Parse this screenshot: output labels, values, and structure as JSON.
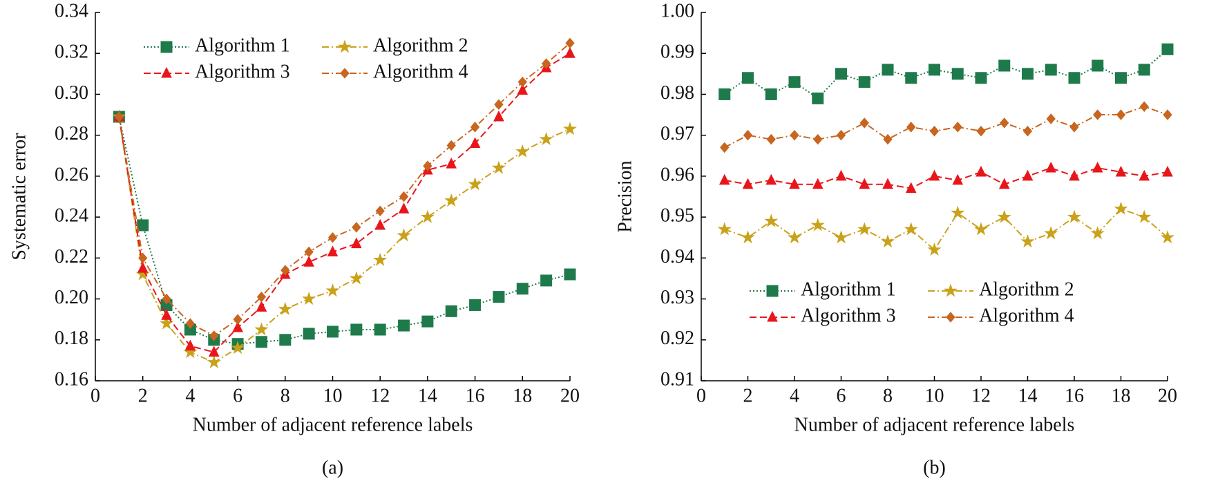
{
  "chart_data": [
    {
      "type": "line",
      "caption": "(a)",
      "xlabel": "Number of adjacent reference labels",
      "ylabel": "Systematic error",
      "x": [
        1,
        2,
        3,
        4,
        5,
        6,
        7,
        8,
        9,
        10,
        11,
        12,
        13,
        14,
        15,
        16,
        17,
        18,
        19,
        20
      ],
      "xlim": [
        0,
        20
      ],
      "xticks": [
        0,
        2,
        4,
        6,
        8,
        10,
        12,
        14,
        16,
        18,
        20
      ],
      "ylim": [
        0.16,
        0.34
      ],
      "yticks": [
        0.16,
        0.18,
        {
          "value": 0.2,
          "label": "0.20"
        },
        0.22,
        0.24,
        0.26,
        0.28,
        {
          "value": 0.3,
          "label": "0.30"
        },
        0.32,
        0.34
      ],
      "legend_loc": "upper left",
      "series": [
        {
          "name": "Algorithm 1",
          "color": "#1e7a4a",
          "marker": "square",
          "dash": "dotted",
          "values": [
            0.289,
            0.236,
            0.197,
            0.185,
            0.18,
            0.178,
            0.179,
            0.18,
            0.183,
            0.184,
            0.185,
            0.185,
            0.187,
            0.189,
            0.194,
            0.197,
            0.201,
            0.205,
            0.209,
            0.212
          ]
        },
        {
          "name": "Algorithm 2",
          "color": "#c9a21a",
          "marker": "star",
          "dash": "dashdot",
          "values": [
            0.289,
            0.212,
            0.188,
            0.174,
            0.169,
            0.176,
            0.185,
            0.195,
            0.2,
            0.204,
            0.21,
            0.219,
            0.231,
            0.24,
            0.248,
            0.256,
            0.264,
            0.272,
            0.278,
            0.283
          ]
        },
        {
          "name": "Algorithm 3",
          "color": "#e8161b",
          "marker": "triangle",
          "dash": "dashed",
          "values": [
            0.289,
            0.215,
            0.192,
            0.177,
            0.174,
            0.186,
            0.196,
            0.212,
            0.218,
            0.223,
            0.227,
            0.236,
            0.244,
            0.263,
            0.266,
            0.276,
            0.289,
            0.302,
            0.313,
            0.32
          ]
        },
        {
          "name": "Algorithm 4",
          "color": "#c8651e",
          "marker": "diamond",
          "dash": "dashdot",
          "values": [
            0.289,
            0.22,
            0.2,
            0.188,
            0.182,
            0.19,
            0.201,
            0.214,
            0.223,
            0.23,
            0.235,
            0.243,
            0.25,
            0.265,
            0.275,
            0.284,
            0.295,
            0.306,
            0.315,
            0.325
          ]
        }
      ]
    },
    {
      "type": "line",
      "caption": "(b)",
      "xlabel": "Number of adjacent reference labels",
      "ylabel": "Precision",
      "x": [
        1,
        2,
        3,
        4,
        5,
        6,
        7,
        8,
        9,
        10,
        11,
        12,
        13,
        14,
        15,
        16,
        17,
        18,
        19,
        20
      ],
      "xlim": [
        0,
        20
      ],
      "xticks": [
        0,
        2,
        4,
        6,
        8,
        10,
        12,
        14,
        16,
        18,
        20
      ],
      "ylim": [
        0.91,
        1.0
      ],
      "yticks": [
        0.91,
        0.92,
        0.93,
        0.94,
        0.95,
        0.96,
        0.97,
        0.98,
        0.99,
        {
          "value": 1.0,
          "label": "1.00"
        }
      ],
      "legend_loc": "lower left",
      "series": [
        {
          "name": "Algorithm 1",
          "color": "#1e7a4a",
          "marker": "square",
          "dash": "dotted",
          "values": [
            0.98,
            0.984,
            0.98,
            0.983,
            0.979,
            0.985,
            0.983,
            0.986,
            0.984,
            0.986,
            0.985,
            0.984,
            0.987,
            0.985,
            0.986,
            0.984,
            0.987,
            0.984,
            0.986,
            0.991
          ]
        },
        {
          "name": "Algorithm 2",
          "color": "#c9a21a",
          "marker": "star",
          "dash": "dashdot",
          "values": [
            0.947,
            0.945,
            0.949,
            0.945,
            0.948,
            0.945,
            0.947,
            0.944,
            0.947,
            0.942,
            0.951,
            0.947,
            0.95,
            0.944,
            0.946,
            0.95,
            0.946,
            0.952,
            0.95,
            0.945
          ]
        },
        {
          "name": "Algorithm 3",
          "color": "#e8161b",
          "marker": "triangle",
          "dash": "dashed",
          "values": [
            0.959,
            0.958,
            0.959,
            0.958,
            0.958,
            0.96,
            0.958,
            0.958,
            0.957,
            0.96,
            0.959,
            0.961,
            0.958,
            0.96,
            0.962,
            0.96,
            0.962,
            0.961,
            0.96,
            0.961
          ]
        },
        {
          "name": "Algorithm 4",
          "color": "#c8651e",
          "marker": "diamond",
          "dash": "dashdot",
          "values": [
            0.967,
            0.97,
            0.969,
            0.97,
            0.969,
            0.97,
            0.973,
            0.969,
            0.972,
            0.971,
            0.972,
            0.971,
            0.973,
            0.971,
            0.974,
            0.972,
            0.975,
            0.975,
            0.977,
            0.975
          ]
        }
      ]
    }
  ]
}
